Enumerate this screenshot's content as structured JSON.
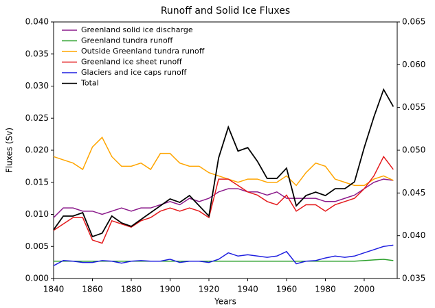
{
  "chart_data": {
    "type": "line",
    "title": "Runoff and Solid Ice Fluxes",
    "xlabel": "Years",
    "ylabel": "Fluxes (Sv)",
    "x": [
      1840,
      1845,
      1850,
      1855,
      1860,
      1865,
      1870,
      1875,
      1880,
      1885,
      1890,
      1895,
      1900,
      1905,
      1910,
      1915,
      1920,
      1925,
      1930,
      1935,
      1940,
      1945,
      1950,
      1955,
      1960,
      1965,
      1970,
      1975,
      1980,
      1985,
      1990,
      1995,
      2000,
      2005,
      2010,
      2015
    ],
    "xlim": [
      1840,
      2017
    ],
    "xticks": [
      1840,
      1860,
      1880,
      1900,
      1920,
      1940,
      1960,
      1980,
      2000
    ],
    "ylim": [
      0,
      0.04
    ],
    "yticks": [
      {
        "value": 0,
        "label": "0.000"
      },
      {
        "value": 0.005,
        "label": "0.005"
      },
      {
        "value": 0.01,
        "label": "0.010"
      },
      {
        "value": 0.015,
        "label": "0.015"
      },
      {
        "value": 0.02,
        "label": "0.020"
      },
      {
        "value": 0.025,
        "label": "0.025"
      },
      {
        "value": 0.03,
        "label": "0.030"
      },
      {
        "value": 0.035,
        "label": "0.035"
      },
      {
        "value": 0.04,
        "label": "0.040"
      }
    ],
    "y2lim": [
      0.035,
      0.065
    ],
    "y2ticks": [
      {
        "value": 0.035,
        "label": "0.035"
      },
      {
        "value": 0.04,
        "label": "0.040"
      },
      {
        "value": 0.045,
        "label": "0.045"
      },
      {
        "value": 0.05,
        "label": "0.050"
      },
      {
        "value": 0.055,
        "label": "0.055"
      },
      {
        "value": 0.06,
        "label": "0.060"
      },
      {
        "value": 0.065,
        "label": "0.065"
      }
    ],
    "legend": "upper left",
    "series": [
      {
        "name": "Greenland solid ice discharge",
        "color": "#8b1a8b",
        "values": [
          0.0095,
          0.011,
          0.011,
          0.0105,
          0.0105,
          0.01,
          0.0105,
          0.011,
          0.0105,
          0.011,
          0.011,
          0.0115,
          0.012,
          0.0115,
          0.0125,
          0.012,
          0.0125,
          0.0135,
          0.014,
          0.014,
          0.0135,
          0.0135,
          0.013,
          0.0135,
          0.0125,
          0.0125,
          0.0125,
          0.0125,
          0.012,
          0.012,
          0.0125,
          0.013,
          0.014,
          0.015,
          0.0155,
          0.0153
        ]
      },
      {
        "name": "Greenland tundra runoff",
        "color": "#2ca02c",
        "values": [
          0.0027,
          0.0027,
          0.0027,
          0.0027,
          0.0027,
          0.0027,
          0.0027,
          0.0027,
          0.0027,
          0.0027,
          0.0027,
          0.0027,
          0.0027,
          0.0027,
          0.0027,
          0.0027,
          0.0027,
          0.0027,
          0.0027,
          0.0027,
          0.0027,
          0.0027,
          0.0027,
          0.0027,
          0.0027,
          0.0027,
          0.0027,
          0.0027,
          0.0027,
          0.0027,
          0.0027,
          0.0027,
          0.0028,
          0.0029,
          0.003,
          0.0028
        ]
      },
      {
        "name": "Outside Greenland tundra runoff",
        "color": "#ffa500",
        "values": [
          0.019,
          0.0185,
          0.018,
          0.017,
          0.0205,
          0.022,
          0.019,
          0.0175,
          0.0175,
          0.018,
          0.017,
          0.0195,
          0.0195,
          0.018,
          0.0175,
          0.0175,
          0.0165,
          0.016,
          0.0155,
          0.015,
          0.0155,
          0.0155,
          0.015,
          0.015,
          0.016,
          0.0145,
          0.0165,
          0.018,
          0.0175,
          0.0155,
          0.015,
          0.0145,
          0.0145,
          0.0155,
          0.016,
          0.0153
        ]
      },
      {
        "name": "Greenland ice sheet runoff",
        "color": "#e41a1c",
        "values": [
          0.0075,
          0.0085,
          0.0095,
          0.0095,
          0.006,
          0.0055,
          0.009,
          0.0085,
          0.008,
          0.009,
          0.0095,
          0.0105,
          0.011,
          0.0105,
          0.011,
          0.0105,
          0.0095,
          0.0155,
          0.0155,
          0.0145,
          0.0135,
          0.013,
          0.012,
          0.0115,
          0.013,
          0.0105,
          0.0115,
          0.0115,
          0.0105,
          0.0115,
          0.012,
          0.0125,
          0.014,
          0.016,
          0.019,
          0.017
        ]
      },
      {
        "name": "Glaciers and ice caps runoff",
        "color": "#1f1fe0",
        "values": [
          0.002,
          0.0028,
          0.0027,
          0.0025,
          0.0025,
          0.0028,
          0.0027,
          0.0024,
          0.0027,
          0.0028,
          0.0027,
          0.0027,
          0.003,
          0.0025,
          0.0027,
          0.0027,
          0.0025,
          0.003,
          0.004,
          0.0035,
          0.0037,
          0.0035,
          0.0033,
          0.0035,
          0.0042,
          0.0023,
          0.0027,
          0.0028,
          0.0032,
          0.0035,
          0.0033,
          0.0035,
          0.004,
          0.0045,
          0.005,
          0.0052
        ]
      },
      {
        "name": "Total",
        "color": "#000000",
        "axis": "y2",
        "values": [
          0.0407,
          0.0423,
          0.0423,
          0.0427,
          0.0399,
          0.0403,
          0.0423,
          0.0415,
          0.0411,
          0.0419,
          0.0427,
          0.0435,
          0.0443,
          0.0439,
          0.0447,
          0.0435,
          0.0423,
          0.0491,
          0.0527,
          0.0499,
          0.0503,
          0.0487,
          0.0467,
          0.0467,
          0.0479,
          0.0435,
          0.0447,
          0.0451,
          0.0447,
          0.0455,
          0.0455,
          0.0463,
          0.0503,
          0.0539,
          0.0571,
          0.0551
        ]
      }
    ]
  }
}
